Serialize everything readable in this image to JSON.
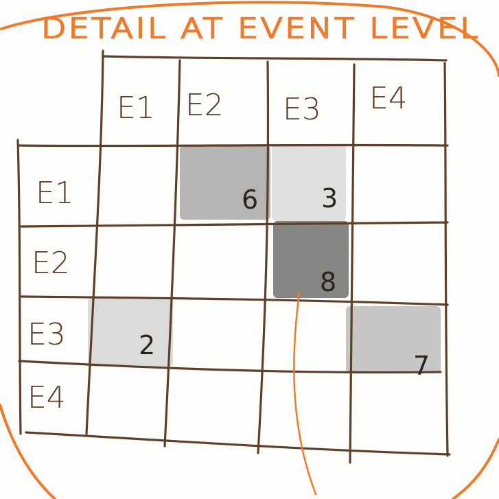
{
  "title": "DETAIL AT EVENT LEVEL",
  "matrix": {
    "columns": [
      "E1",
      "E2",
      "E3",
      "E4"
    ],
    "rows": [
      "E1",
      "E2",
      "E3",
      "E4"
    ],
    "cells": [
      {
        "row": "E1",
        "col": "E2",
        "value": "6",
        "shade": "#9c9c9c"
      },
      {
        "row": "E1",
        "col": "E3",
        "value": "3",
        "shade": "#d6d6d6"
      },
      {
        "row": "E2",
        "col": "E3",
        "value": "8",
        "shade": "#5c5c5c"
      },
      {
        "row": "E3",
        "col": "E1",
        "value": "2",
        "shade": "#cfcfcf"
      },
      {
        "row": "E3",
        "col": "E4",
        "value": "7",
        "shade": "#b3b3b3"
      }
    ]
  },
  "colors": {
    "ink": "#5e3f2c",
    "accent": "#f07a2c",
    "paper": "#fdfdfb"
  }
}
